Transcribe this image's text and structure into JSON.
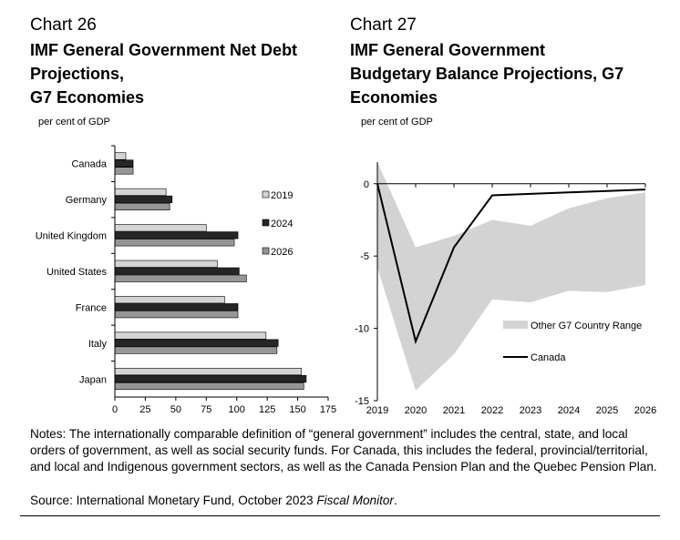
{
  "chart_data": [
    {
      "type": "bar",
      "orientation": "horizontal",
      "label": "Chart 26",
      "title_lines": [
        "IMF General Government Net Debt",
        "Projections,",
        "G7 Economies"
      ],
      "unit": "per cent of GDP",
      "categories": [
        "Canada",
        "Germany",
        "United Kingdom",
        "United States",
        "France",
        "Italy",
        "Japan"
      ],
      "series": [
        {
          "name": "2019",
          "color": "#d4d4d4",
          "values": [
            9,
            42,
            75,
            84,
            90,
            124,
            153
          ]
        },
        {
          "name": "2024",
          "color": "#262626",
          "values": [
            15,
            47,
            101,
            102,
            101,
            134,
            157
          ]
        },
        {
          "name": "2026",
          "color": "#969696",
          "values": [
            15,
            45,
            98,
            108,
            101,
            133,
            155
          ]
        }
      ],
      "xlim": [
        0,
        175
      ],
      "xticks": [
        "0",
        "25",
        "50",
        "75",
        "100",
        "125",
        "150",
        "175"
      ],
      "legend_position": "right"
    },
    {
      "type": "area",
      "label": "Chart 27",
      "title_lines": [
        "IMF General Government",
        "Budgetary Balance Projections, G7",
        "Economies"
      ],
      "unit": "per cent of GDP",
      "x": [
        "2019",
        "2020",
        "2021",
        "2022",
        "2023",
        "2024",
        "2025",
        "2026"
      ],
      "series": [
        {
          "name": "Other G7 Country Range",
          "color": "#d3d3d3",
          "upper": [
            1.5,
            -4.4,
            -3.6,
            -2.5,
            -2.9,
            -1.7,
            -1.0,
            -0.6
          ],
          "lower": [
            -5.8,
            -14.3,
            -11.8,
            -8.0,
            -8.2,
            -7.4,
            -7.5,
            -7.0
          ]
        },
        {
          "name": "Canada",
          "color": "#000000",
          "values": [
            0.0,
            -10.9,
            -4.4,
            -0.8,
            -0.7,
            -0.6,
            -0.5,
            -0.4
          ]
        }
      ],
      "ylim": [
        -15,
        2
      ],
      "yticks": [
        "0",
        "-5",
        "-10",
        "-15"
      ],
      "legend_position": "right"
    }
  ],
  "notes": "Notes: The internationally comparable definition of “general government” includes the central, state, and local orders of government, as well as social security funds. For Canada, this includes the federal, provincial/territorial, and local and Indigenous government sectors, as well as the Canada Pension Plan and the Quebec Pension Plan.",
  "source": {
    "prefix": "Source: International Monetary Fund, October 2023 ",
    "italic": "Fiscal Monitor",
    "suffix": "."
  }
}
